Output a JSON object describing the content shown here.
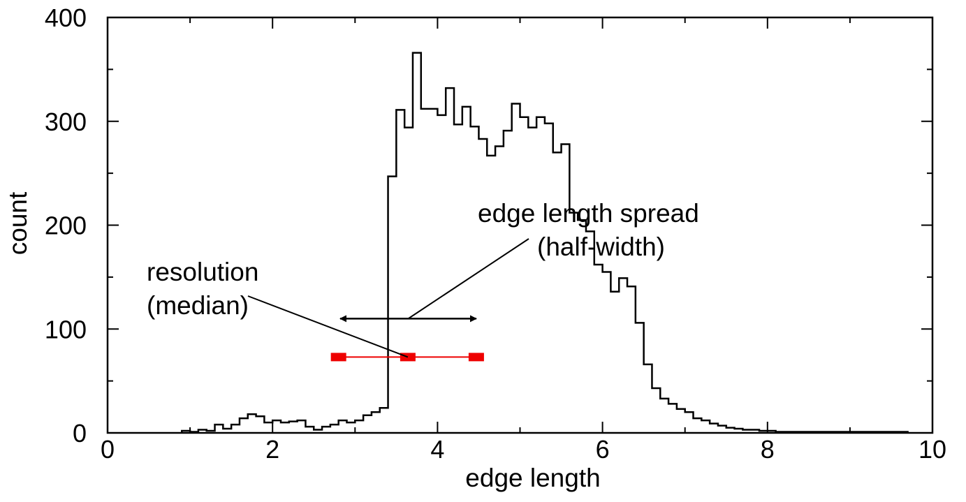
{
  "chart_data": {
    "type": "histogram",
    "xlabel": "edge length",
    "ylabel": "count",
    "xlim": [
      0,
      10
    ],
    "ylim": [
      0,
      400
    ],
    "x_ticks": [
      0,
      2,
      4,
      6,
      8,
      10
    ],
    "y_ticks": [
      0,
      100,
      200,
      300,
      400
    ],
    "x_tick_labels": [
      "0",
      "2",
      "4",
      "6",
      "8",
      "10"
    ],
    "y_tick_labels": [
      "0",
      "100",
      "200",
      "300",
      "400"
    ],
    "x_minor_step": 1,
    "y_minor_step": 50,
    "grid": false,
    "bin_start": 0.9,
    "bin_width": 0.1,
    "values": [
      2,
      1,
      3,
      2,
      8,
      4,
      8,
      14,
      18,
      16,
      10,
      12,
      10,
      11,
      12,
      6,
      3,
      6,
      8,
      12,
      10,
      12,
      17,
      20,
      24,
      247,
      311,
      294,
      366,
      312,
      312,
      306,
      332,
      297,
      314,
      295,
      283,
      267,
      276,
      291,
      317,
      304,
      294,
      304,
      298,
      270,
      278,
      212,
      205,
      194,
      162,
      155,
      136,
      149,
      141,
      106,
      66,
      43,
      33,
      28,
      23,
      20,
      14,
      12,
      9,
      7,
      5,
      4,
      3,
      3,
      2,
      2,
      1,
      1,
      1,
      1,
      1,
      1,
      1,
      1,
      1,
      1,
      1,
      1,
      1,
      1,
      1,
      1
    ],
    "markers": {
      "color": "#ee0000",
      "y": 73,
      "x_points": [
        2.8,
        3.64,
        4.47
      ]
    },
    "spread_arrow": {
      "y": 110,
      "x_from": 2.82,
      "x_to": 4.47
    },
    "annotations": {
      "spread_line1": "edge length spread",
      "spread_line2": "(half-width)",
      "resolution_line1": "resolution",
      "resolution_line2": "(median)"
    }
  }
}
